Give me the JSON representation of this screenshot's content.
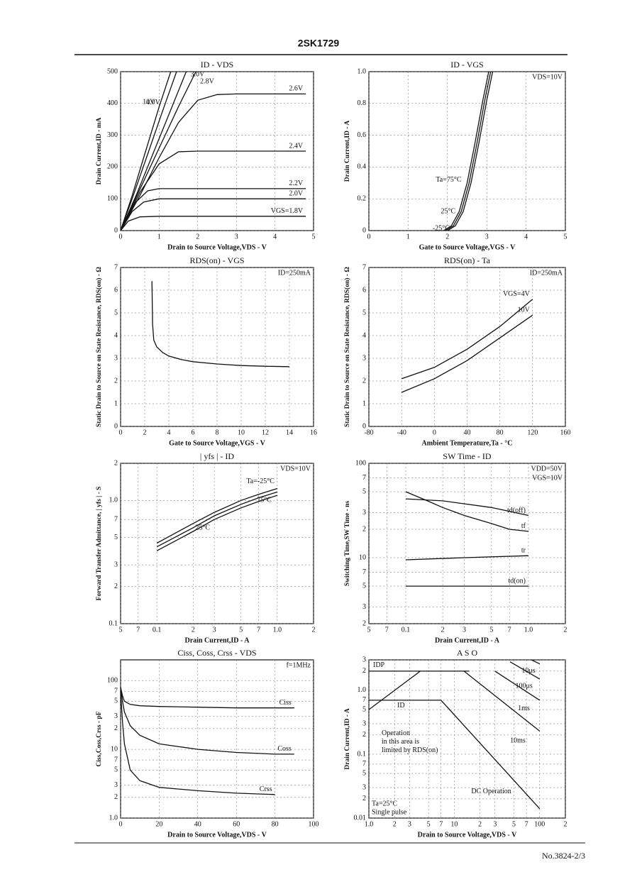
{
  "header": {
    "title": "2SK1729"
  },
  "footer": "No.3824-2/3",
  "chart_data": [
    {
      "type": "line",
      "title": "ID - VDS",
      "xlabel": "Drain to Source Voltage,VDS - V",
      "ylabel": "Drain Current,ID - mA",
      "xlim": [
        0,
        5
      ],
      "xticks": [
        0,
        1,
        2,
        3,
        4,
        5
      ],
      "ylim": [
        0,
        500
      ],
      "yticks": [
        0,
        100,
        200,
        300,
        400,
        500
      ],
      "grid": true,
      "annotations": [],
      "series": [
        {
          "name": "10V",
          "color": "#111",
          "x": [
            0,
            0.3,
            0.6,
            1,
            1.3
          ],
          "values": [
            0,
            110,
            230,
            390,
            500
          ]
        },
        {
          "name": "4.0V",
          "color": "#111",
          "x": [
            0,
            0.3,
            0.7,
            1.1,
            1.45
          ],
          "values": [
            0,
            100,
            240,
            380,
            500
          ]
        },
        {
          "name": "3.0V",
          "color": "#111",
          "x": [
            0,
            0.4,
            0.8,
            1.2,
            1.7
          ],
          "values": [
            0,
            110,
            230,
            350,
            500
          ]
        },
        {
          "name": "2.8V",
          "color": "#111",
          "x": [
            0,
            0.5,
            1,
            1.5,
            1.95
          ],
          "values": [
            0,
            130,
            260,
            390,
            500
          ]
        },
        {
          "name": "2.6V",
          "color": "#111",
          "x": [
            0,
            0.5,
            1,
            1.5,
            2,
            2.5,
            3,
            4.8
          ],
          "values": [
            0,
            110,
            230,
            340,
            410,
            428,
            430,
            430
          ]
        },
        {
          "name": "2.4V",
          "color": "#111",
          "x": [
            0,
            0.5,
            1,
            1.5,
            2,
            3,
            4.8
          ],
          "values": [
            0,
            120,
            210,
            248,
            250,
            250,
            250
          ]
        },
        {
          "name": "2.2V",
          "color": "#111",
          "x": [
            0,
            0.4,
            0.7,
            1,
            2,
            3,
            4,
            4.8
          ],
          "values": [
            0,
            90,
            125,
            132,
            132,
            132,
            132,
            132
          ]
        },
        {
          "name": "2.0V",
          "color": "#111",
          "x": [
            0,
            0.3,
            0.6,
            1,
            2,
            3,
            4,
            4.8
          ],
          "values": [
            0,
            60,
            90,
            100,
            100,
            100,
            100,
            100
          ]
        },
        {
          "name": "VGS=1.8V",
          "color": "#111",
          "x": [
            0,
            0.2,
            0.5,
            1,
            2,
            3,
            4.8
          ],
          "values": [
            0,
            30,
            43,
            45,
            45,
            45,
            45
          ]
        }
      ]
    },
    {
      "type": "line",
      "title": "ID - VGS",
      "xlabel": "Gate to Source Voltage,VGS - V",
      "ylabel": "Drain Current,ID - A",
      "xlim": [
        0,
        5
      ],
      "xticks": [
        0,
        1,
        2,
        3,
        4,
        5
      ],
      "ylim": [
        0,
        1
      ],
      "yticks": [
        0,
        0.2,
        0.4,
        0.6,
        0.8,
        {
          "value": 1,
          "label": "1.0"
        }
      ],
      "grid": true,
      "annotations": [
        "VDS=10V"
      ],
      "series": [
        {
          "name": "Ta=75°C",
          "color": "#111",
          "x": [
            1.9,
            2.1,
            2.3,
            2.5,
            2.7,
            2.9,
            3.05
          ],
          "values": [
            0,
            0.03,
            0.12,
            0.3,
            0.55,
            0.82,
            1
          ]
        },
        {
          "name": "25°C",
          "color": "#111",
          "x": [
            1.95,
            2.15,
            2.35,
            2.55,
            2.75,
            2.95,
            3.1
          ],
          "values": [
            0,
            0.03,
            0.12,
            0.3,
            0.55,
            0.82,
            1
          ]
        },
        {
          "name": "-25°C",
          "color": "#111",
          "x": [
            2,
            2.2,
            2.4,
            2.6,
            2.8,
            3,
            3.15
          ],
          "values": [
            0,
            0.03,
            0.12,
            0.3,
            0.55,
            0.82,
            1
          ]
        }
      ]
    },
    {
      "type": "line",
      "title": "RDS(on) - VGS",
      "xlabel": "Gate to Source Voltage,VGS - V",
      "ylabel": "Static Drain to Source on State Resistance, RDS(on) - Ω",
      "xlim": [
        0,
        16
      ],
      "xticks": [
        0,
        2,
        4,
        6,
        8,
        10,
        12,
        14,
        16
      ],
      "ylim": [
        0,
        7
      ],
      "yticks": [
        0,
        1,
        2,
        3,
        4,
        5,
        6,
        7
      ],
      "grid": true,
      "annotations": [
        "ID=250mA"
      ],
      "series": [
        {
          "color": "#111",
          "x": [
            2.6,
            2.65,
            2.75,
            3,
            3.5,
            4,
            5,
            6,
            8,
            10,
            12,
            14
          ],
          "values": [
            6.4,
            4.5,
            3.8,
            3.5,
            3.25,
            3.1,
            2.95,
            2.85,
            2.75,
            2.68,
            2.65,
            2.63
          ]
        }
      ]
    },
    {
      "type": "line",
      "title": "RDS(on) - Ta",
      "xlabel": "Ambient Temperature,Ta - °C",
      "ylabel": "Static Drain to Source on State Resistance, RDS(on) - Ω",
      "xlim": [
        -80,
        160
      ],
      "xticks": [
        -80,
        -40,
        0,
        40,
        80,
        120,
        160
      ],
      "ylim": [
        0,
        7
      ],
      "yticks": [
        0,
        1,
        2,
        3,
        4,
        5,
        6,
        7
      ],
      "grid": true,
      "annotations": [
        "ID=250mA"
      ],
      "series": [
        {
          "name": "VGS=4V",
          "color": "#111",
          "x": [
            -40,
            0,
            40,
            80,
            120
          ],
          "values": [
            2.1,
            2.6,
            3.4,
            4.4,
            5.6
          ]
        },
        {
          "name": "10V",
          "color": "#111",
          "x": [
            -40,
            0,
            40,
            80,
            120
          ],
          "values": [
            1.5,
            2.1,
            2.9,
            3.9,
            4.9
          ]
        }
      ]
    },
    {
      "type": "line",
      "title": "| yfs | - ID",
      "xlabel": "Drain Current,ID - A",
      "ylabel": "Forward Transfer Admittance, | yfs | - S",
      "xscale": "log",
      "yscale": "log",
      "xlim": [
        0.05,
        2
      ],
      "xticks": [
        {
          "value": 0.05,
          "label": "5"
        },
        {
          "value": 0.07,
          "label": "7"
        },
        0.1,
        {
          "value": 0.2,
          "label": "2"
        },
        {
          "value": 0.3,
          "label": "3"
        },
        {
          "value": 0.5,
          "label": "5"
        },
        {
          "value": 0.7,
          "label": "7"
        },
        {
          "value": 1,
          "label": "1.0"
        },
        2
      ],
      "ylim": [
        0.1,
        2
      ],
      "yticks": [
        0.1,
        {
          "value": 0.2,
          "label": "2"
        },
        {
          "value": 0.3,
          "label": "3"
        },
        {
          "value": 0.5,
          "label": "5"
        },
        {
          "value": 0.7,
          "label": "7"
        },
        {
          "value": 1,
          "label": "1.0"
        },
        2
      ],
      "grid": true,
      "annotations": [
        "VDS=10V"
      ],
      "series": [
        {
          "name": "Ta=-25°C",
          "color": "#111",
          "x": [
            0.1,
            0.2,
            0.3,
            0.5,
            0.7,
            1
          ],
          "values": [
            0.45,
            0.65,
            0.8,
            1,
            1.12,
            1.25
          ]
        },
        {
          "name": "75°C",
          "color": "#111",
          "x": [
            0.1,
            0.2,
            0.3,
            0.5,
            0.7,
            1
          ],
          "values": [
            0.42,
            0.6,
            0.75,
            0.93,
            1.05,
            1.17
          ]
        },
        {
          "name": "25°C",
          "color": "#111",
          "x": [
            0.1,
            0.2,
            0.3,
            0.5,
            0.7,
            1
          ],
          "values": [
            0.39,
            0.56,
            0.7,
            0.87,
            0.98,
            1.1
          ]
        }
      ]
    },
    {
      "type": "line",
      "title": "SW Time - ID",
      "xlabel": "Drain Current,ID - A",
      "ylabel": "Switching Time,SW Time - ns",
      "xscale": "log",
      "yscale": "log",
      "xlim": [
        0.05,
        2
      ],
      "xticks": [
        {
          "value": 0.05,
          "label": "5"
        },
        {
          "value": 0.07,
          "label": "7"
        },
        0.1,
        {
          "value": 0.2,
          "label": "2"
        },
        {
          "value": 0.3,
          "label": "3"
        },
        {
          "value": 0.5,
          "label": "5"
        },
        {
          "value": 0.7,
          "label": "7"
        },
        {
          "value": 1,
          "label": "1.0"
        },
        2
      ],
      "ylim": [
        2,
        100
      ],
      "yticks": [
        2,
        3,
        5,
        7,
        10,
        {
          "value": 20,
          "label": "2"
        },
        {
          "value": 30,
          "label": "3"
        },
        {
          "value": 50,
          "label": "5"
        },
        {
          "value": 70,
          "label": "7"
        },
        100
      ],
      "grid": true,
      "annotations": [
        "VDD=50V",
        "VGS=10V"
      ],
      "series": [
        {
          "name": "td(off)",
          "color": "#111",
          "x": [
            0.1,
            0.2,
            0.5,
            1
          ],
          "values": [
            42,
            40,
            34,
            28
          ]
        },
        {
          "name": "tf",
          "color": "#111",
          "x": [
            0.1,
            0.15,
            0.2,
            0.3,
            0.5,
            0.7,
            1
          ],
          "values": [
            50,
            40,
            34,
            28,
            23,
            20,
            19
          ]
        },
        {
          "name": "tr",
          "color": "#111",
          "x": [
            0.1,
            0.3,
            1
          ],
          "values": [
            9.5,
            10,
            10.5
          ]
        },
        {
          "name": "td(on)",
          "color": "#111",
          "x": [
            0.1,
            0.3,
            1
          ],
          "values": [
            5,
            5,
            5
          ]
        }
      ]
    },
    {
      "type": "line",
      "title": "Ciss, Coss, Crss - VDS",
      "xlabel": "Drain to Source Voltage,VDS - V",
      "ylabel": "Ciss,Coss,Crss - pF",
      "yscale": "log",
      "xlim": [
        0,
        100
      ],
      "xticks": [
        0,
        20,
        40,
        60,
        80,
        100
      ],
      "ylim": [
        1,
        200
      ],
      "yticks": [
        {
          "value": 1,
          "label": "1.0"
        },
        2,
        3,
        5,
        7,
        10,
        {
          "value": 20,
          "label": "2"
        },
        {
          "value": 30,
          "label": "3"
        },
        {
          "value": 50,
          "label": "5"
        },
        {
          "value": 70,
          "label": "7"
        },
        100
      ],
      "grid": true,
      "annotations": [
        "f=1MHz"
      ],
      "series": [
        {
          "name": "Ciss",
          "color": "#111",
          "x": [
            0,
            1,
            2,
            5,
            10,
            20,
            40,
            60,
            90
          ],
          "values": [
            80,
            60,
            50,
            45,
            43,
            42,
            41,
            40,
            40
          ]
        },
        {
          "name": "Coss",
          "color": "#111",
          "x": [
            0,
            1,
            2,
            5,
            10,
            20,
            40,
            60,
            80,
            90
          ],
          "values": [
            80,
            50,
            35,
            22,
            16,
            12,
            10,
            9,
            8.5,
            8.5
          ]
        },
        {
          "name": "Crss",
          "color": "#111",
          "x": [
            0,
            1,
            2,
            5,
            10,
            20,
            40,
            60,
            80
          ],
          "values": [
            70,
            25,
            12,
            5,
            3.5,
            2.8,
            2.5,
            2.3,
            2.2
          ]
        }
      ]
    },
    {
      "type": "line",
      "title": "A S O",
      "xlabel": "Drain to Source Voltage,VDS - V",
      "ylabel": "Drain Current,ID - A",
      "xscale": "log",
      "yscale": "log",
      "xlim": [
        1,
        200
      ],
      "xticks": [
        {
          "value": 1,
          "label": "1.0"
        },
        2,
        3,
        5,
        7,
        10,
        {
          "value": 20,
          "label": "2"
        },
        {
          "value": 30,
          "label": "3"
        },
        {
          "value": 50,
          "label": "5"
        },
        {
          "value": 70,
          "label": "7"
        },
        100,
        {
          "value": 200,
          "label": "2"
        }
      ],
      "ylim": [
        0.01,
        3
      ],
      "yticks": [
        0.01,
        {
          "value": 0.02,
          "label": "2"
        },
        {
          "value": 0.03,
          "label": "3"
        },
        {
          "value": 0.05,
          "label": "5"
        },
        {
          "value": 0.07,
          "label": "7"
        },
        0.1,
        {
          "value": 0.2,
          "label": "2"
        },
        {
          "value": 0.3,
          "label": "3"
        },
        {
          "value": 0.5,
          "label": "5"
        },
        {
          "value": 0.7,
          "label": "7"
        },
        {
          "value": 1,
          "label": "1.0"
        },
        2,
        3
      ],
      "grid": true,
      "annotations": [
        "Ta=25°C",
        "Single pulse"
      ],
      "note": [
        "Operation",
        "in this area is",
        "limited by RDS(on)"
      ],
      "series": [
        {
          "name": "IDP",
          "color": "#111",
          "x": [
            1,
            15
          ],
          "values": [
            2,
            2
          ]
        },
        {
          "name": "ID",
          "color": "#111",
          "x": [
            1,
            7
          ],
          "values": [
            0.7,
            0.7
          ]
        },
        {
          "color": "#111",
          "x": [
            1,
            4
          ],
          "values": [
            0.5,
            2
          ]
        },
        {
          "name": "10μs",
          "color": "#111",
          "x": [
            80,
            100
          ],
          "values": [
            3,
            2.6
          ]
        },
        {
          "name": "100μs",
          "color": "#111",
          "x": [
            45,
            100
          ],
          "values": [
            2.8,
            1.5
          ]
        },
        {
          "name": "1ms",
          "color": "#111",
          "x": [
            30,
            100
          ],
          "values": [
            2,
            0.7
          ]
        },
        {
          "name": "10ms",
          "color": "#111",
          "x": [
            13,
            100
          ],
          "values": [
            2,
            0.23
          ]
        },
        {
          "name": "DC Operation",
          "color": "#111",
          "x": [
            7,
            100
          ],
          "values": [
            0.7,
            0.014
          ]
        }
      ]
    }
  ]
}
